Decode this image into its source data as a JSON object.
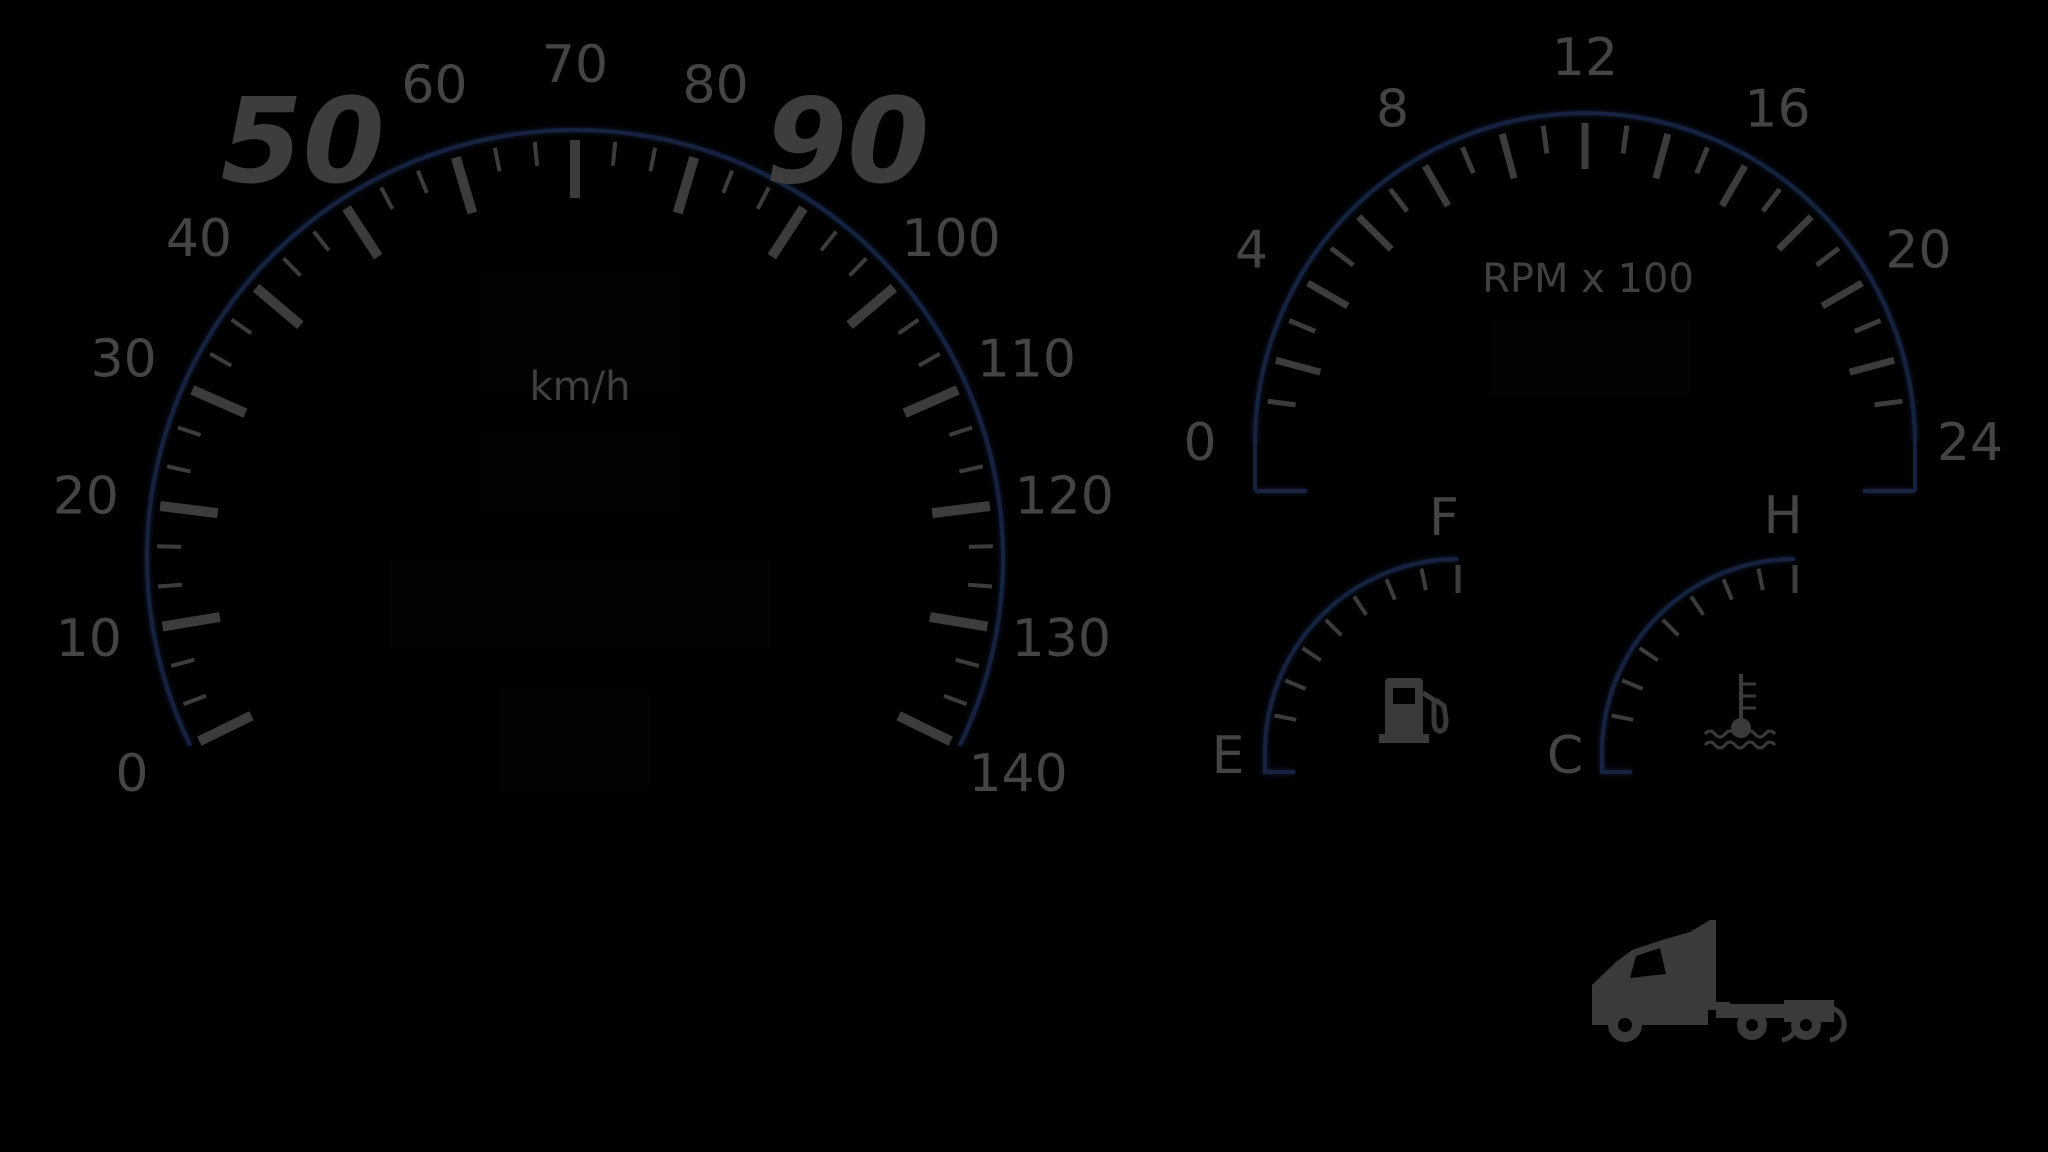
{
  "colors": {
    "background": "#000000",
    "tick": "#3c3c3c",
    "label": "#444444",
    "rim": "#0f1e3a",
    "icon": "#3a3a3a"
  },
  "speedometer": {
    "unit": "km/h",
    "labels": [
      "0",
      "10",
      "20",
      "30",
      "40",
      "50",
      "60",
      "70",
      "80",
      "90",
      "100",
      "110",
      "120",
      "130",
      "140"
    ],
    "highlighted_labels": [
      "50",
      "90"
    ]
  },
  "tachometer": {
    "unit": "RPM x 100",
    "labels": [
      "0",
      "4",
      "8",
      "12",
      "16",
      "20",
      "24"
    ]
  },
  "fuel_gauge": {
    "low_label": "E",
    "high_label": "F",
    "icon": "fuel-pump-icon"
  },
  "temp_gauge": {
    "low_label": "C",
    "high_label": "H",
    "icon": "coolant-temperature-icon"
  },
  "vehicle": {
    "icon": "semi-truck-icon"
  }
}
